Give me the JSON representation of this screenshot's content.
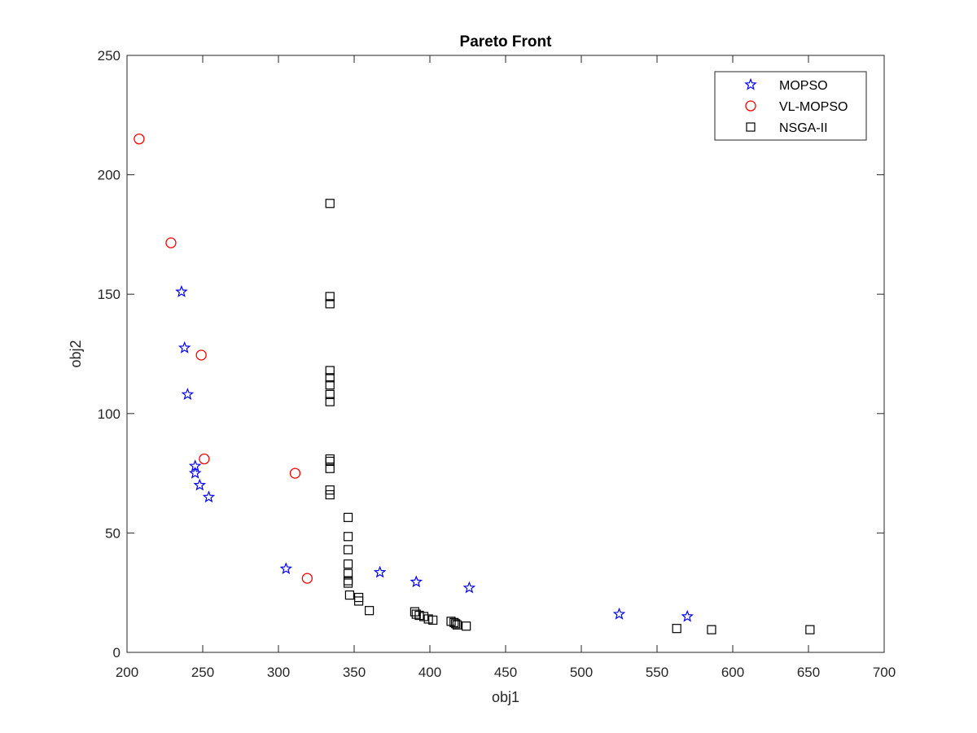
{
  "chart_data": {
    "type": "scatter",
    "title": "Pareto Front",
    "xlabel": "obj1",
    "ylabel": "obj2",
    "xlim": [
      200,
      700
    ],
    "ylim": [
      0,
      250
    ],
    "xticks": [
      200,
      250,
      300,
      350,
      400,
      450,
      500,
      550,
      600,
      650,
      700
    ],
    "yticks": [
      0,
      50,
      100,
      150,
      200,
      250
    ],
    "grid": false,
    "legend_position": "top-right",
    "series": [
      {
        "name": "MOPSO",
        "marker": "star",
        "color": "#0000ff",
        "points": [
          [
            236,
            151
          ],
          [
            238,
            127.5
          ],
          [
            240,
            108
          ],
          [
            245,
            78
          ],
          [
            245,
            75
          ],
          [
            248,
            70
          ],
          [
            254,
            65
          ],
          [
            305,
            35
          ],
          [
            367,
            33.5
          ],
          [
            391,
            29.5
          ],
          [
            426,
            27
          ],
          [
            525,
            16
          ],
          [
            570,
            15
          ]
        ]
      },
      {
        "name": "VL-MOPSO",
        "marker": "circle",
        "color": "#ff0000",
        "points": [
          [
            208,
            215
          ],
          [
            229,
            171.5
          ],
          [
            249,
            124.5
          ],
          [
            251,
            81
          ],
          [
            311,
            75
          ],
          [
            319,
            31
          ]
        ]
      },
      {
        "name": "NSGA-II",
        "marker": "square",
        "color": "#000000",
        "points": [
          [
            334,
            188
          ],
          [
            334,
            149
          ],
          [
            334,
            146
          ],
          [
            334,
            118
          ],
          [
            334,
            115
          ],
          [
            334,
            112
          ],
          [
            334,
            108
          ],
          [
            334,
            105
          ],
          [
            334,
            81
          ],
          [
            334,
            80
          ],
          [
            334,
            77
          ],
          [
            334,
            68
          ],
          [
            334,
            66
          ],
          [
            346,
            56.5
          ],
          [
            346,
            48.5
          ],
          [
            346,
            43
          ],
          [
            346,
            37
          ],
          [
            346,
            33
          ],
          [
            346,
            30
          ],
          [
            346,
            29
          ],
          [
            347,
            24
          ],
          [
            353,
            23
          ],
          [
            353,
            21.5
          ],
          [
            360,
            17.5
          ],
          [
            390,
            17
          ],
          [
            391,
            16
          ],
          [
            393,
            15.5
          ],
          [
            396,
            15
          ],
          [
            399,
            14
          ],
          [
            402,
            13.5
          ],
          [
            414,
            13
          ],
          [
            416,
            12.5
          ],
          [
            417,
            12
          ],
          [
            418,
            11.5
          ],
          [
            424,
            11
          ],
          [
            563,
            10
          ],
          [
            586,
            9.5
          ],
          [
            651,
            9.5
          ]
        ]
      }
    ]
  }
}
